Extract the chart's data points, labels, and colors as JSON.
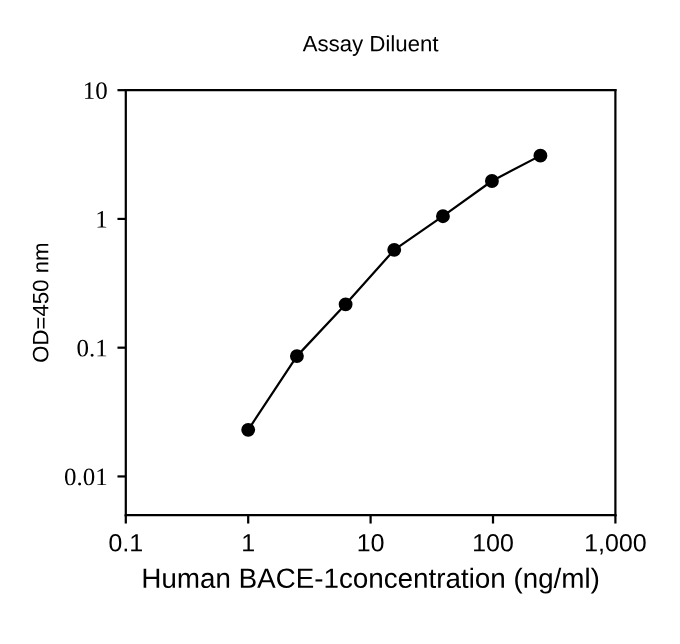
{
  "chart_data": {
    "type": "line",
    "title": "Assay Diluent",
    "xlabel": "Human BACE-1concentration (ng/ml)",
    "ylabel": "OD=450 nm",
    "log": "xy",
    "xlim": [
      0.1,
      1000
    ],
    "xticks": [
      0.1,
      1,
      10,
      100,
      {
        "value": 1000,
        "label": "1,000"
      }
    ],
    "ylim": [
      0.005,
      10
    ],
    "yticks": [
      0.01,
      0.1,
      1,
      10
    ],
    "x": [
      1,
      2.5,
      6.25,
      15.6,
      39,
      98,
      244
    ],
    "series": [
      {
        "color": "#000000",
        "values": [
          0.023,
          0.086,
          0.217,
          0.575,
          1.05,
          1.97,
          3.1
        ]
      }
    ],
    "marker": "circle",
    "line_style": "solid",
    "grid": false,
    "legend": false
  }
}
